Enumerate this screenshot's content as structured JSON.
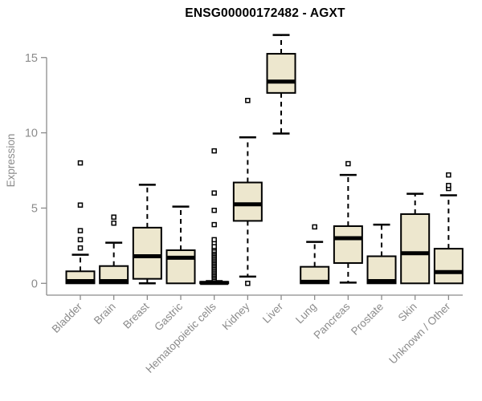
{
  "chart_data": {
    "type": "boxplot",
    "title": "ENSG00000172482 - AGXT",
    "xlabel": "",
    "ylabel": "Expression",
    "yticks": [
      0,
      5,
      10,
      15
    ],
    "ylim": [
      -0.4,
      16.8
    ],
    "grid": false,
    "legend": "none",
    "categories": [
      "Bladder",
      "Brain",
      "Breast",
      "Gastric",
      "Hematopoietic cells",
      "Kidney",
      "Liver",
      "Lung",
      "Pancreas",
      "Prostate",
      "Skin",
      "Unknown / Other"
    ],
    "series": [
      {
        "name": "Bladder",
        "whisker_low": 0,
        "q1": 0,
        "median": 0.15,
        "q3": 0.8,
        "whisker_high": 1.9,
        "outliers": [
          2.35,
          2.9,
          3.5,
          5.2,
          8.0
        ]
      },
      {
        "name": "Brain",
        "whisker_low": 0,
        "q1": 0,
        "median": 0.15,
        "q3": 1.15,
        "whisker_high": 2.7,
        "outliers": [
          4.0,
          4.4
        ]
      },
      {
        "name": "Breast",
        "whisker_low": 0,
        "q1": 0.3,
        "median": 1.8,
        "q3": 3.7,
        "whisker_high": 6.55,
        "outliers": []
      },
      {
        "name": "Gastric",
        "whisker_low": 0,
        "q1": 0,
        "median": 1.7,
        "q3": 2.2,
        "whisker_high": 5.1,
        "outliers": []
      },
      {
        "name": "Hematopoietic cells",
        "whisker_low": 0,
        "q1": 0,
        "median": 0.03,
        "q3": 0.1,
        "whisker_high": 0.15,
        "outliers": [
          0.3,
          0.4,
          0.5,
          0.6,
          0.7,
          0.8,
          0.9,
          1.0,
          1.1,
          1.2,
          1.3,
          1.4,
          1.5,
          1.6,
          1.7,
          1.8,
          1.9,
          2.0,
          2.1,
          2.2,
          2.35,
          2.45,
          2.7,
          2.9,
          3.9,
          4.85,
          6.0,
          8.8
        ]
      },
      {
        "name": "Kidney",
        "whisker_low": 0.45,
        "q1": 4.15,
        "median": 5.25,
        "q3": 6.7,
        "whisker_high": 9.7,
        "outliers": [
          0.0,
          12.15
        ]
      },
      {
        "name": "Liver",
        "whisker_low": 9.95,
        "q1": 12.65,
        "median": 13.4,
        "q3": 15.25,
        "whisker_high": 16.5,
        "outliers": []
      },
      {
        "name": "Lung",
        "whisker_low": 0,
        "q1": 0,
        "median": 0.1,
        "q3": 1.1,
        "whisker_high": 2.75,
        "outliers": [
          3.75
        ]
      },
      {
        "name": "Pancreas",
        "whisker_low": 0.05,
        "q1": 1.35,
        "median": 3.0,
        "q3": 3.8,
        "whisker_high": 7.2,
        "outliers": [
          7.95
        ]
      },
      {
        "name": "Prostate",
        "whisker_low": 0,
        "q1": 0,
        "median": 0.15,
        "q3": 1.8,
        "whisker_high": 3.9,
        "outliers": []
      },
      {
        "name": "Skin",
        "whisker_low": 0,
        "q1": 0,
        "median": 2.0,
        "q3": 4.6,
        "whisker_high": 5.95,
        "outliers": []
      },
      {
        "name": "Unknown / Other",
        "whisker_low": 0,
        "q1": 0,
        "median": 0.75,
        "q3": 2.3,
        "whisker_high": 5.85,
        "outliers": [
          6.3,
          6.5,
          7.2
        ]
      }
    ],
    "colors": {
      "box_fill": "#ede7ce",
      "box_border": "#000000",
      "median": "#000000",
      "whisker": "#000000",
      "outlier_border": "#000000",
      "outlier_fill": "#ffffff",
      "axis": "#8b8b8b",
      "tick_label": "#8b8b8b",
      "title": "#000000",
      "background": "#ffffff"
    }
  }
}
